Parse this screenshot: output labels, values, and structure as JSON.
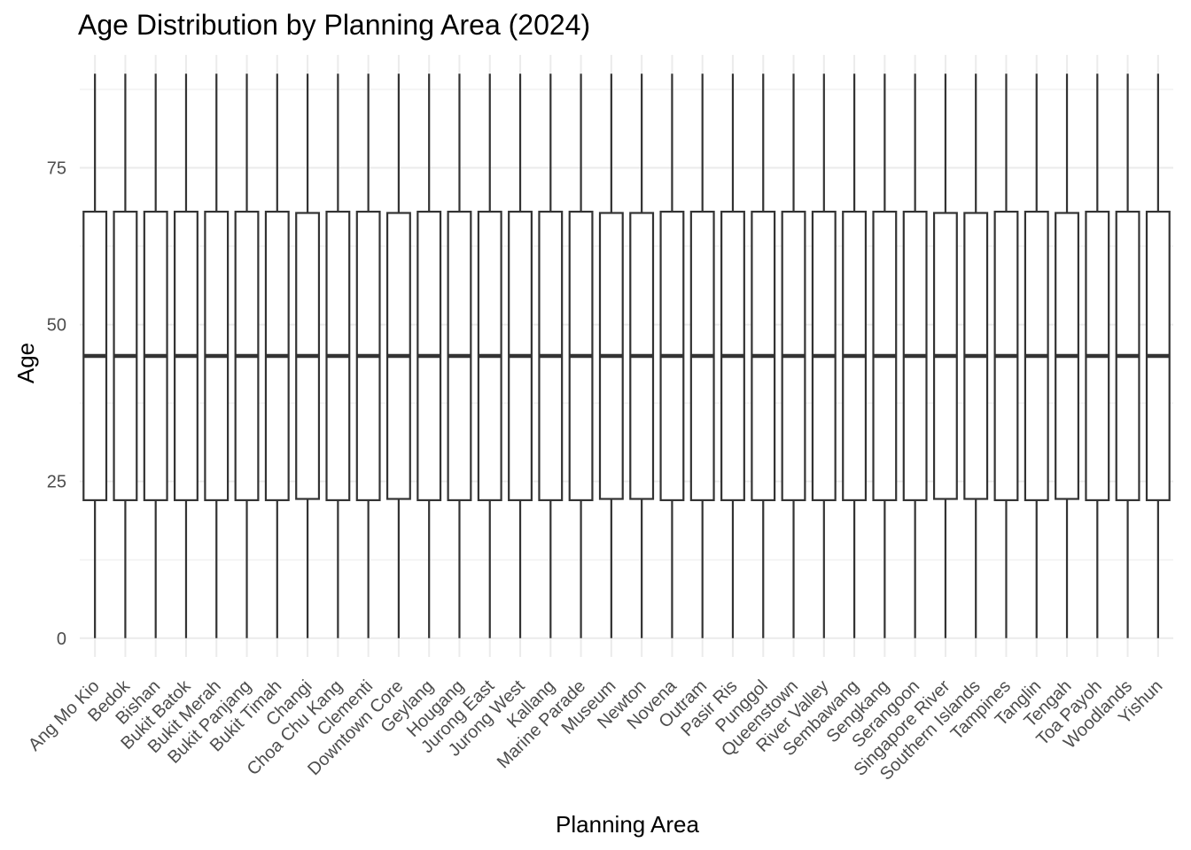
{
  "chart_data": {
    "type": "boxplot",
    "title": "Age Distribution by Planning Area (2024)",
    "xlabel": "Planning Area",
    "ylabel": "Age",
    "ylim": [
      -3,
      93
    ],
    "yticks": [
      0,
      25,
      50,
      75
    ],
    "grid": true,
    "legend": "none",
    "categories": [
      "Ang Mo Kio",
      "Bedok",
      "Bishan",
      "Bukit Batok",
      "Bukit Merah",
      "Bukit Panjang",
      "Bukit Timah",
      "Changi",
      "Choa Chu Kang",
      "Clementi",
      "Downtown Core",
      "Geylang",
      "Hougang",
      "Jurong East",
      "Jurong West",
      "Kallang",
      "Marine Parade",
      "Museum",
      "Newton",
      "Novena",
      "Outram",
      "Pasir Ris",
      "Punggol",
      "Queenstown",
      "River Valley",
      "Sembawang",
      "Sengkang",
      "Serangoon",
      "Singapore River",
      "Southern Islands",
      "Tampines",
      "Tanglin",
      "Tengah",
      "Toa Payoh",
      "Woodlands",
      "Yishun"
    ],
    "boxes": [
      {
        "min": 0,
        "q1": 22,
        "median": 45,
        "q3": 68,
        "max": 90
      },
      {
        "min": 0,
        "q1": 22,
        "median": 45,
        "q3": 68,
        "max": 90
      },
      {
        "min": 0,
        "q1": 22,
        "median": 45,
        "q3": 68,
        "max": 90
      },
      {
        "min": 0,
        "q1": 22,
        "median": 45,
        "q3": 68,
        "max": 90
      },
      {
        "min": 0,
        "q1": 22,
        "median": 45,
        "q3": 68,
        "max": 90
      },
      {
        "min": 0,
        "q1": 22,
        "median": 45,
        "q3": 68,
        "max": 90
      },
      {
        "min": 0,
        "q1": 22,
        "median": 45,
        "q3": 68,
        "max": 90
      },
      {
        "min": 0,
        "q1": 22.2,
        "median": 45,
        "q3": 67.8,
        "max": 90
      },
      {
        "min": 0,
        "q1": 22,
        "median": 45,
        "q3": 68,
        "max": 90
      },
      {
        "min": 0,
        "q1": 22,
        "median": 45,
        "q3": 68,
        "max": 90
      },
      {
        "min": 0,
        "q1": 22.2,
        "median": 45,
        "q3": 67.8,
        "max": 90
      },
      {
        "min": 0,
        "q1": 22,
        "median": 45,
        "q3": 68,
        "max": 90
      },
      {
        "min": 0,
        "q1": 22,
        "median": 45,
        "q3": 68,
        "max": 90
      },
      {
        "min": 0,
        "q1": 22,
        "median": 45,
        "q3": 68,
        "max": 90
      },
      {
        "min": 0,
        "q1": 22,
        "median": 45,
        "q3": 68,
        "max": 90
      },
      {
        "min": 0,
        "q1": 22,
        "median": 45,
        "q3": 68,
        "max": 90
      },
      {
        "min": 0,
        "q1": 22,
        "median": 45,
        "q3": 68,
        "max": 90
      },
      {
        "min": 0,
        "q1": 22.2,
        "median": 45,
        "q3": 67.8,
        "max": 90
      },
      {
        "min": 0,
        "q1": 22.2,
        "median": 45,
        "q3": 67.8,
        "max": 90
      },
      {
        "min": 0,
        "q1": 22,
        "median": 45,
        "q3": 68,
        "max": 90
      },
      {
        "min": 0,
        "q1": 22,
        "median": 45,
        "q3": 68,
        "max": 90
      },
      {
        "min": 0,
        "q1": 22,
        "median": 45,
        "q3": 68,
        "max": 90
      },
      {
        "min": 0,
        "q1": 22,
        "median": 45,
        "q3": 68,
        "max": 90
      },
      {
        "min": 0,
        "q1": 22,
        "median": 45,
        "q3": 68,
        "max": 90
      },
      {
        "min": 0,
        "q1": 22,
        "median": 45,
        "q3": 68,
        "max": 90
      },
      {
        "min": 0,
        "q1": 22,
        "median": 45,
        "q3": 68,
        "max": 90
      },
      {
        "min": 0,
        "q1": 22,
        "median": 45,
        "q3": 68,
        "max": 90
      },
      {
        "min": 0,
        "q1": 22,
        "median": 45,
        "q3": 68,
        "max": 90
      },
      {
        "min": 0,
        "q1": 22.2,
        "median": 45,
        "q3": 67.8,
        "max": 90
      },
      {
        "min": 0,
        "q1": 22.2,
        "median": 45,
        "q3": 67.8,
        "max": 90
      },
      {
        "min": 0,
        "q1": 22,
        "median": 45,
        "q3": 68,
        "max": 90
      },
      {
        "min": 0,
        "q1": 22,
        "median": 45,
        "q3": 68,
        "max": 90
      },
      {
        "min": 0,
        "q1": 22.2,
        "median": 45,
        "q3": 67.8,
        "max": 90
      },
      {
        "min": 0,
        "q1": 22,
        "median": 45,
        "q3": 68,
        "max": 90
      },
      {
        "min": 0,
        "q1": 22,
        "median": 45,
        "q3": 68,
        "max": 90
      },
      {
        "min": 0,
        "q1": 22,
        "median": 45,
        "q3": 68,
        "max": 90
      }
    ],
    "colors": {
      "box_stroke": "#333333",
      "box_fill": "#ffffff",
      "grid": "#ebebeb",
      "tick_text": "#4d4d4d"
    }
  }
}
